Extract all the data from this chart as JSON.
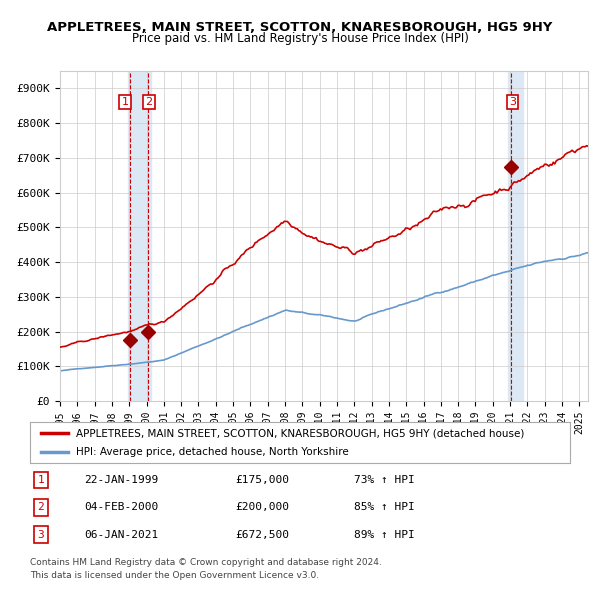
{
  "title": "APPLETREES, MAIN STREET, SCOTTON, KNARESBOROUGH, HG5 9HY",
  "subtitle": "Price paid vs. HM Land Registry's House Price Index (HPI)",
  "red_label": "APPLETREES, MAIN STREET, SCOTTON, KNARESBOROUGH, HG5 9HY (detached house)",
  "blue_label": "HPI: Average price, detached house, North Yorkshire",
  "footer1": "Contains HM Land Registry data © Crown copyright and database right 2024.",
  "footer2": "This data is licensed under the Open Government Licence v3.0.",
  "transactions": [
    {
      "num": 1,
      "date": "22-JAN-1999",
      "price": "£175,000",
      "hpi": "73% ↑ HPI",
      "x_year": 1999.05
    },
    {
      "num": 2,
      "date": "04-FEB-2000",
      "price": "£200,000",
      "hpi": "85% ↑ HPI",
      "x_year": 2000.1
    },
    {
      "num": 3,
      "date": "06-JAN-2021",
      "price": "£672,500",
      "hpi": "89% ↑ HPI",
      "x_year": 2021.03
    }
  ],
  "xmin": 1995,
  "xmax": 2025.5,
  "ymin": 0,
  "ymax": 950000,
  "yticks": [
    0,
    100000,
    200000,
    300000,
    400000,
    500000,
    600000,
    700000,
    800000,
    900000
  ],
  "ytick_labels": [
    "£0",
    "£100K",
    "£200K",
    "£300K",
    "£400K",
    "£500K",
    "£600K",
    "£700K",
    "£800K",
    "£900K"
  ],
  "red_color": "#cc0000",
  "blue_color": "#6699cc",
  "highlight_color": "#dce9f5",
  "vline_color": "#cc0000",
  "marker_color": "#990000",
  "grid_color": "#cccccc",
  "bg_color": "#ffffff",
  "plot_bg": "#ffffff"
}
